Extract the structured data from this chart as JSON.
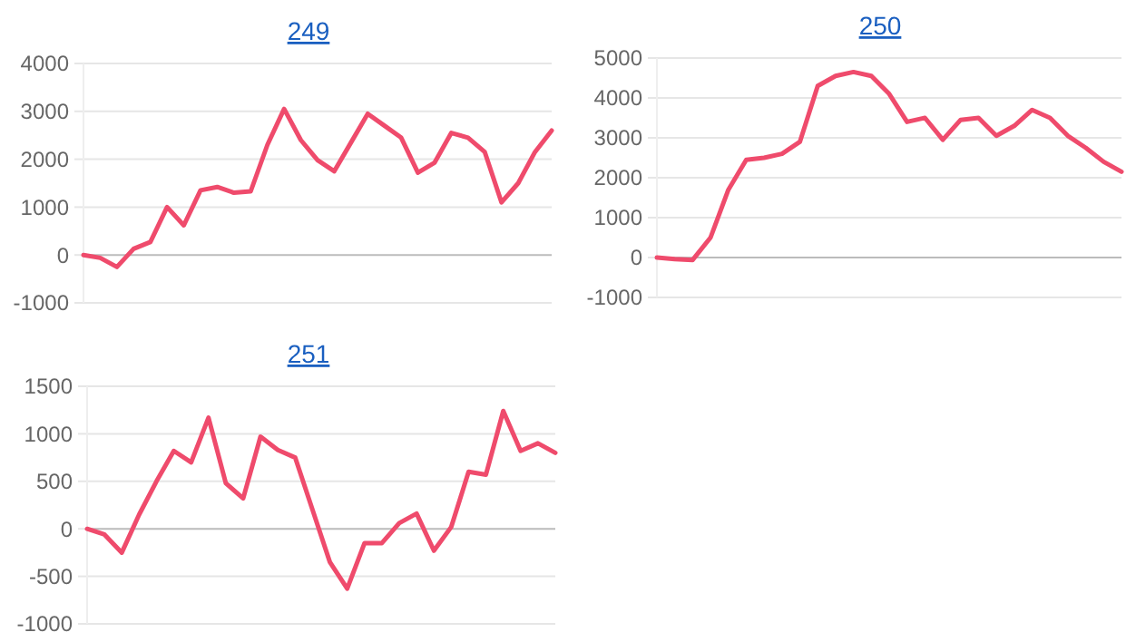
{
  "chart_data": [
    {
      "type": "line",
      "title": "249",
      "categories": [
        null,
        null,
        null,
        null,
        null,
        null,
        null,
        null,
        null,
        null,
        null,
        null,
        null,
        null,
        null,
        null,
        null,
        null,
        null,
        null,
        null,
        null,
        null,
        null,
        null,
        null,
        null,
        null,
        null
      ],
      "series": [
        {
          "color": "#ef4b6c",
          "values": [
            0,
            -60,
            -250,
            130,
            270,
            1000,
            620,
            1350,
            1420,
            1300,
            1330,
            2300,
            3050,
            2400,
            1980,
            1750,
            2350,
            2950,
            2700,
            2450,
            1720,
            1930,
            2550,
            2450,
            2150,
            1100,
            1500,
            2150,
            2600
          ]
        }
      ],
      "ylim": [
        -1000,
        4000
      ],
      "yticks": [
        -1000,
        0,
        1000,
        2000,
        3000,
        4000
      ],
      "grid": "y",
      "marker": "none",
      "line_style": "solid"
    },
    {
      "type": "line",
      "title": "250",
      "categories": [
        null,
        null,
        null,
        null,
        null,
        null,
        null,
        null,
        null,
        null,
        null,
        null,
        null,
        null,
        null,
        null,
        null,
        null,
        null,
        null,
        null,
        null,
        null,
        null,
        null,
        null,
        null
      ],
      "series": [
        {
          "color": "#ef4b6c",
          "values": [
            0,
            -40,
            -60,
            500,
            1700,
            2450,
            2500,
            2600,
            2900,
            4300,
            4550,
            4650,
            4550,
            4100,
            3400,
            3500,
            2950,
            3450,
            3500,
            3050,
            3300,
            3700,
            3500,
            3050,
            2750,
            2400,
            2150
          ]
        }
      ],
      "ylim": [
        -1000,
        5000
      ],
      "yticks": [
        -1000,
        0,
        1000,
        2000,
        3000,
        4000,
        5000
      ],
      "grid": "y",
      "marker": "none",
      "line_style": "solid"
    },
    {
      "type": "line",
      "title": "251",
      "categories": [
        null,
        null,
        null,
        null,
        null,
        null,
        null,
        null,
        null,
        null,
        null,
        null,
        null,
        null,
        null,
        null,
        null,
        null,
        null,
        null,
        null,
        null,
        null,
        null,
        null,
        null,
        null,
        null
      ],
      "series": [
        {
          "color": "#ef4b6c",
          "values": [
            0,
            -60,
            -250,
            150,
            500,
            820,
            700,
            1170,
            480,
            320,
            970,
            830,
            750,
            200,
            -350,
            -630,
            -150,
            -150,
            60,
            160,
            -230,
            20,
            600,
            570,
            1240,
            820,
            900,
            800
          ]
        }
      ],
      "ylim": [
        -1000,
        1500
      ],
      "yticks": [
        -1000,
        -500,
        0,
        500,
        1000,
        1500
      ],
      "grid": "y",
      "marker": "none",
      "line_style": "solid"
    }
  ]
}
